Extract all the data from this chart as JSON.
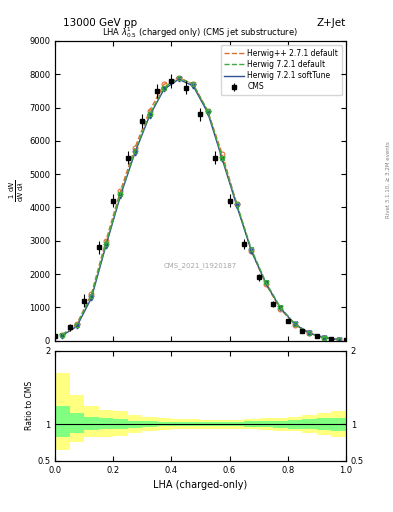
{
  "title_top": "13000 GeV pp",
  "title_right": "Z+Jet",
  "plot_title": "LHA $\\lambda^{1}_{0.5}$ (charged only) (CMS jet substructure)",
  "xlabel": "LHA (charged-only)",
  "ylabel": "1 / mathrm{d}N / mathrm{d}\\lambda",
  "right_label": "Rivet 3.1.10, ≥ 3.2M events",
  "watermark": "CMS_2021_I1920187",
  "xlim": [
    0.0,
    1.0
  ],
  "ylim_main": [
    0,
    9000
  ],
  "ylim_ratio": [
    0.5,
    2.0
  ],
  "cms_x": [
    0.0,
    0.05,
    0.1,
    0.15,
    0.2,
    0.25,
    0.3,
    0.35,
    0.4,
    0.45,
    0.5,
    0.55,
    0.6,
    0.65,
    0.7,
    0.75,
    0.8,
    0.85,
    0.9,
    0.95,
    1.0
  ],
  "cms_y": [
    150,
    400,
    1200,
    2800,
    4200,
    5500,
    6600,
    7500,
    7800,
    7600,
    6800,
    5500,
    4200,
    2900,
    1900,
    1100,
    600,
    300,
    150,
    60,
    10
  ],
  "cms_yerr": [
    50,
    100,
    200,
    200,
    200,
    200,
    200,
    200,
    200,
    200,
    200,
    200,
    200,
    150,
    100,
    80,
    50,
    30,
    20,
    15,
    5
  ],
  "herwig_x": [
    0.025,
    0.075,
    0.125,
    0.175,
    0.225,
    0.275,
    0.325,
    0.375,
    0.425,
    0.475,
    0.525,
    0.575,
    0.625,
    0.675,
    0.725,
    0.775,
    0.825,
    0.875,
    0.925,
    0.975
  ],
  "herwig271_y": [
    170,
    500,
    1400,
    3000,
    4500,
    5800,
    6900,
    7700,
    7900,
    7700,
    6900,
    5600,
    4100,
    2700,
    1700,
    950,
    480,
    220,
    90,
    30
  ],
  "herwig721_y": [
    180,
    480,
    1350,
    2900,
    4400,
    5700,
    6800,
    7600,
    7900,
    7700,
    6900,
    5500,
    4100,
    2750,
    1750,
    1000,
    500,
    230,
    95,
    32
  ],
  "herwig721soft_y": [
    155,
    430,
    1280,
    2850,
    4350,
    5650,
    6750,
    7550,
    7850,
    7650,
    6850,
    5450,
    4050,
    2700,
    1720,
    980,
    490,
    225,
    92,
    30
  ],
  "ratio_yellow_upper": [
    1.7,
    1.4,
    1.25,
    1.2,
    1.18,
    1.12,
    1.1,
    1.08,
    1.07,
    1.07,
    1.06,
    1.06,
    1.06,
    1.07,
    1.08,
    1.09,
    1.1,
    1.12,
    1.15,
    1.18
  ],
  "ratio_yellow_lower": [
    0.65,
    0.75,
    0.82,
    0.83,
    0.84,
    0.88,
    0.9,
    0.92,
    0.93,
    0.93,
    0.94,
    0.94,
    0.94,
    0.93,
    0.92,
    0.91,
    0.9,
    0.88,
    0.85,
    0.82
  ],
  "ratio_green_upper": [
    1.25,
    1.15,
    1.1,
    1.08,
    1.07,
    1.05,
    1.04,
    1.03,
    1.03,
    1.03,
    1.03,
    1.03,
    1.03,
    1.04,
    1.04,
    1.05,
    1.06,
    1.07,
    1.08,
    1.09
  ],
  "ratio_green_lower": [
    0.82,
    0.88,
    0.92,
    0.93,
    0.93,
    0.95,
    0.96,
    0.97,
    0.97,
    0.97,
    0.97,
    0.97,
    0.97,
    0.96,
    0.96,
    0.95,
    0.94,
    0.93,
    0.92,
    0.91
  ],
  "color_cms": "black",
  "color_herwig271": "#e07030",
  "color_herwig721": "#40a840",
  "color_herwig721soft": "#305090",
  "color_yellow": "#ffff80",
  "color_green": "#80ff80",
  "yticks_main": [
    0,
    1000,
    2000,
    3000,
    4000,
    5000,
    6000,
    7000,
    8000,
    9000
  ],
  "ytick_labels_main": [
    "0",
    "1000",
    "2000",
    "3000",
    "4000",
    "5000",
    "6000",
    "7000",
    "8000",
    "9000"
  ]
}
